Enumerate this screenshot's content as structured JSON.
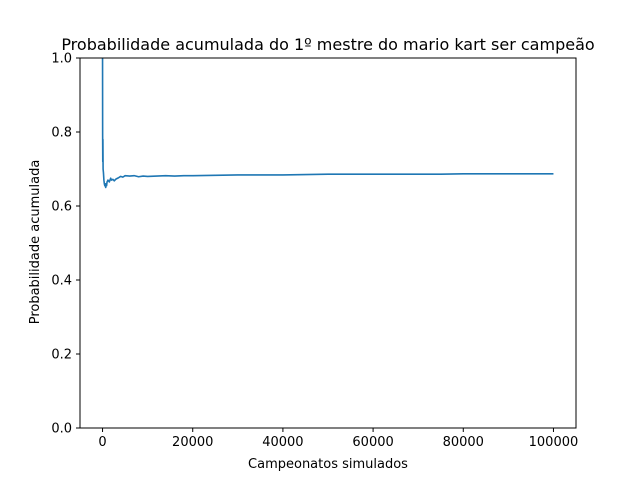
{
  "chart_data": {
    "type": "line",
    "title": "Probabilidade acumulada do 1º mestre do mario kart ser campeão",
    "xlabel": "Campeonatos simulados",
    "ylabel": "Probabilidade acumulada",
    "xlim": [
      -5000,
      105000
    ],
    "ylim": [
      0.0,
      1.0
    ],
    "xticks": [
      0,
      20000,
      40000,
      60000,
      80000,
      100000
    ],
    "xtick_labels": [
      "0",
      "20000",
      "40000",
      "60000",
      "80000",
      "100000"
    ],
    "yticks": [
      0.0,
      0.2,
      0.4,
      0.6,
      0.8,
      1.0
    ],
    "ytick_labels": [
      "0.0",
      "0.2",
      "0.4",
      "0.6",
      "0.8",
      "1.0"
    ],
    "grid": false,
    "color": "#1f77b4",
    "series": [
      {
        "x": [
          1,
          20,
          50,
          80,
          120,
          200,
          300,
          400,
          500,
          600,
          700,
          800,
          900,
          1000,
          1200,
          1500,
          1800,
          2000,
          2300,
          2600,
          3000,
          3500,
          4000,
          4500,
          5000,
          6000,
          7000,
          8000,
          9000,
          10000,
          12000,
          14000,
          16000,
          18000,
          20000,
          25000,
          30000,
          35000,
          40000,
          45000,
          50000,
          55000,
          60000,
          65000,
          70000,
          75000,
          80000,
          85000,
          90000,
          95000,
          100000
        ],
        "y": [
          1.0,
          0.79,
          0.72,
          0.78,
          0.7,
          0.69,
          0.67,
          0.66,
          0.655,
          0.66,
          0.65,
          0.66,
          0.655,
          0.665,
          0.67,
          0.665,
          0.675,
          0.67,
          0.672,
          0.668,
          0.673,
          0.676,
          0.68,
          0.678,
          0.682,
          0.681,
          0.682,
          0.679,
          0.681,
          0.68,
          0.681,
          0.682,
          0.681,
          0.682,
          0.682,
          0.683,
          0.684,
          0.684,
          0.684,
          0.685,
          0.686,
          0.686,
          0.686,
          0.686,
          0.686,
          0.686,
          0.687,
          0.687,
          0.687,
          0.687,
          0.687
        ]
      }
    ]
  }
}
